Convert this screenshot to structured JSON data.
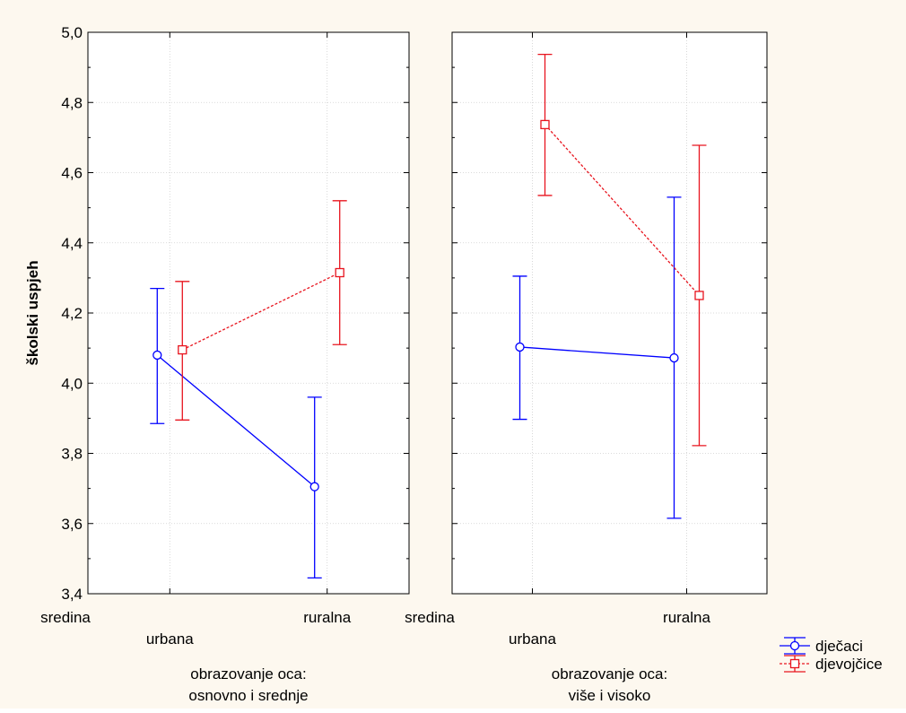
{
  "background": "#fdf8ef",
  "chart_data": {
    "type": "line",
    "ylabel": "školski uspjeh",
    "ylim": [
      3.4,
      5.0
    ],
    "ytick_values": [
      3.4,
      3.6,
      3.8,
      4.0,
      4.2,
      4.4,
      4.6,
      4.8,
      5.0
    ],
    "ytick_labels": [
      "3,4",
      "3,6",
      "3,8",
      "4,0",
      "4,2",
      "4,4",
      "4,6",
      "4,8",
      "5,0"
    ],
    "x_axis_title": "sredina",
    "categories": [
      "urbana",
      "ruralna"
    ],
    "grid": true,
    "legend_position": "bottom-right",
    "panels": [
      {
        "title_line1": "obrazovanje oca:",
        "title_line2": "osnovno i srednje",
        "series": [
          {
            "name": "dječaci",
            "color": "#0000ff",
            "marker": "circle",
            "line_style": "solid",
            "values": [
              4.08,
              3.705
            ],
            "ci_lower": [
              3.885,
              3.445
            ],
            "ci_upper": [
              4.27,
              3.96
            ]
          },
          {
            "name": "djevojčice",
            "color": "#e8141e",
            "marker": "square",
            "line_style": "dotted",
            "values": [
              4.095,
              4.315
            ],
            "ci_lower": [
              3.895,
              4.11
            ],
            "ci_upper": [
              4.29,
              4.52
            ]
          }
        ]
      },
      {
        "title_line1": "obrazovanje oca:",
        "title_line2": "više i visoko",
        "series": [
          {
            "name": "dječaci",
            "color": "#0000ff",
            "marker": "circle",
            "line_style": "solid",
            "values": [
              4.103,
              4.072
            ],
            "ci_lower": [
              3.897,
              3.615
            ],
            "ci_upper": [
              4.305,
              4.53
            ]
          },
          {
            "name": "djevojčice",
            "color": "#e8141e",
            "marker": "square",
            "line_style": "dotted",
            "values": [
              4.737,
              4.25
            ],
            "ci_lower": [
              4.535,
              3.822
            ],
            "ci_upper": [
              4.937,
              4.678
            ]
          }
        ]
      }
    ],
    "legend": [
      {
        "label": "dječaci",
        "color": "#0000ff",
        "marker": "circle",
        "line_style": "solid"
      },
      {
        "label": "djevojčice",
        "color": "#e8141e",
        "marker": "square",
        "line_style": "dotted"
      }
    ]
  }
}
